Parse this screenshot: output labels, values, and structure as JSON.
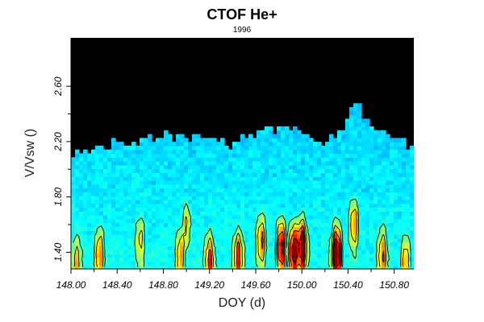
{
  "chart_data": {
    "type": "heatmap",
    "title": "CTOF He+",
    "subtitle": "1996",
    "xlabel": "DOY (d)",
    "ylabel": "V/Vsw ()",
    "xlim": [
      148.0,
      150.97
    ],
    "ylim": [
      1.28,
      2.95
    ],
    "x_ticks": [
      "148.00",
      "148.40",
      "148.80",
      "149.20",
      "149.60",
      "150.00",
      "150.40",
      "150.80"
    ],
    "y_ticks": [
      "1.40",
      "1.80",
      "2.20",
      "2.60"
    ],
    "background_color": "#000000",
    "colormap": "jet",
    "contour_color": "#000000",
    "data_upper_envelope": [
      [
        148.0,
        2.13
      ],
      [
        148.2,
        2.15
      ],
      [
        148.4,
        2.2
      ],
      [
        148.6,
        2.22
      ],
      [
        148.8,
        2.25
      ],
      [
        149.0,
        2.22
      ],
      [
        149.2,
        2.25
      ],
      [
        149.4,
        2.18
      ],
      [
        149.6,
        2.25
      ],
      [
        149.8,
        2.3
      ],
      [
        150.0,
        2.27
      ],
      [
        150.2,
        2.2
      ],
      [
        150.4,
        2.35
      ],
      [
        150.45,
        2.5
      ],
      [
        150.6,
        2.3
      ],
      [
        150.8,
        2.25
      ],
      [
        150.97,
        2.15
      ]
    ],
    "intensity_peaks": [
      {
        "doy": 148.05,
        "v": 1.35,
        "level": 0.45
      },
      {
        "doy": 148.25,
        "v": 1.4,
        "level": 0.55
      },
      {
        "doy": 148.6,
        "v": 1.5,
        "level": 0.45
      },
      {
        "doy": 148.95,
        "v": 1.4,
        "level": 0.5
      },
      {
        "doy": 149.0,
        "v": 1.62,
        "level": 0.45
      },
      {
        "doy": 149.2,
        "v": 1.35,
        "level": 0.6
      },
      {
        "doy": 149.45,
        "v": 1.38,
        "level": 0.65
      },
      {
        "doy": 149.65,
        "v": 1.5,
        "level": 0.6
      },
      {
        "doy": 149.82,
        "v": 1.45,
        "level": 0.78
      },
      {
        "doy": 149.93,
        "v": 1.42,
        "level": 0.85
      },
      {
        "doy": 150.0,
        "v": 1.45,
        "level": 0.95
      },
      {
        "doy": 150.3,
        "v": 1.4,
        "level": 0.95
      },
      {
        "doy": 150.45,
        "v": 1.62,
        "level": 0.6
      },
      {
        "doy": 150.7,
        "v": 1.4,
        "level": 0.55
      },
      {
        "doy": 150.9,
        "v": 1.35,
        "level": 0.45
      }
    ]
  }
}
